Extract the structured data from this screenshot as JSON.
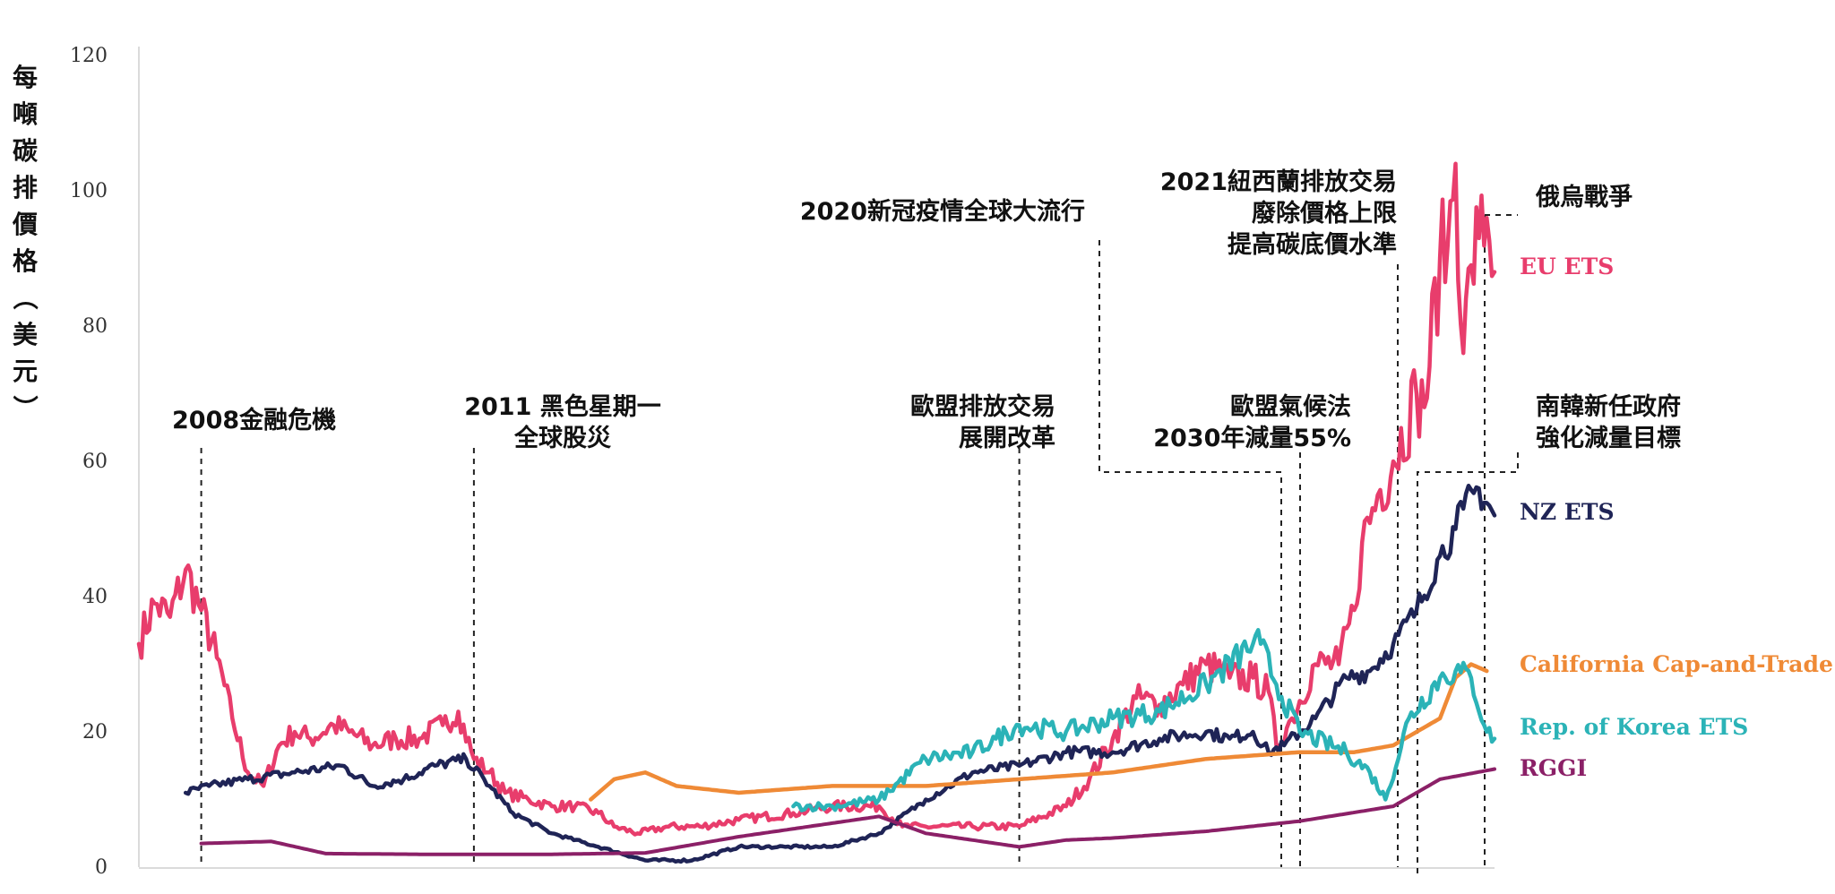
{
  "chart_data": {
    "type": "line",
    "ylabel": "每噸碳排價格（美元）",
    "ylim": [
      0,
      120
    ],
    "yticks": [
      0,
      20,
      40,
      60,
      80,
      100,
      120
    ],
    "xlim": [
      "2008-01",
      "2022-07"
    ],
    "grid": false,
    "legend": "right-inline",
    "series": [
      {
        "name": "EU ETS",
        "color": "#E83D6C",
        "points": [
          [
            "2008-01",
            33
          ],
          [
            "2008-03",
            39
          ],
          [
            "2008-05",
            37
          ],
          [
            "2008-07",
            44
          ],
          [
            "2008-09",
            38
          ],
          [
            "2008-11",
            31
          ],
          [
            "2009-01",
            22
          ],
          [
            "2009-03",
            14
          ],
          [
            "2009-05",
            12
          ],
          [
            "2009-07",
            18
          ],
          [
            "2009-09",
            20
          ],
          [
            "2009-11",
            19
          ],
          [
            "2010-02",
            21
          ],
          [
            "2010-04",
            20
          ],
          [
            "2010-07",
            18
          ],
          [
            "2010-10",
            19
          ],
          [
            "2011-01",
            19
          ],
          [
            "2011-04",
            21
          ],
          [
            "2011-06",
            23
          ],
          [
            "2011-08",
            16
          ],
          [
            "2011-10",
            14
          ],
          [
            "2011-12",
            11
          ],
          [
            "2012-03",
            10
          ],
          [
            "2012-06",
            9
          ],
          [
            "2012-09",
            9
          ],
          [
            "2012-12",
            8
          ],
          [
            "2013-02",
            6
          ],
          [
            "2013-05",
            5
          ],
          [
            "2013-09",
            6
          ],
          [
            "2014-01",
            6
          ],
          [
            "2014-06",
            7
          ],
          [
            "2015-01",
            8
          ],
          [
            "2015-06",
            9
          ],
          [
            "2015-12",
            9
          ],
          [
            "2016-03",
            6
          ],
          [
            "2016-06",
            6
          ],
          [
            "2016-12",
            6
          ],
          [
            "2017-06",
            6
          ],
          [
            "2017-12",
            9
          ],
          [
            "2018-03",
            13
          ],
          [
            "2018-06",
            19
          ],
          [
            "2018-09",
            25
          ],
          [
            "2018-12",
            24
          ],
          [
            "2019-03",
            27
          ],
          [
            "2019-06",
            30
          ],
          [
            "2019-09",
            28
          ],
          [
            "2019-12",
            28
          ],
          [
            "2020-02",
            26
          ],
          [
            "2020-03",
            18
          ],
          [
            "2020-05",
            22
          ],
          [
            "2020-08",
            30
          ],
          [
            "2020-11",
            30
          ],
          [
            "2021-01",
            38
          ],
          [
            "2021-02",
            48
          ],
          [
            "2021-04",
            55
          ],
          [
            "2021-06",
            60
          ],
          [
            "2021-09",
            70
          ],
          [
            "2021-10",
            68
          ],
          [
            "2021-12",
            90
          ],
          [
            "2022-01",
            92
          ],
          [
            "2022-02",
            104
          ],
          [
            "2022-03",
            76
          ],
          [
            "2022-04",
            89
          ],
          [
            "2022-05",
            93
          ],
          [
            "2022-06",
            96
          ],
          [
            "2022-07",
            88
          ]
        ]
      },
      {
        "name": "NZ ETS",
        "color": "#1F2456",
        "points": [
          [
            "2008-07",
            11
          ],
          [
            "2008-10",
            12
          ],
          [
            "2009-03",
            13
          ],
          [
            "2009-09",
            14
          ],
          [
            "2010-03",
            15
          ],
          [
            "2010-07",
            12
          ],
          [
            "2010-11",
            13
          ],
          [
            "2011-03",
            15
          ],
          [
            "2011-07",
            16
          ],
          [
            "2011-10",
            12
          ],
          [
            "2012-01",
            8
          ],
          [
            "2012-06",
            5
          ],
          [
            "2012-12",
            3
          ],
          [
            "2013-06",
            1
          ],
          [
            "2013-12",
            1
          ],
          [
            "2014-06",
            3
          ],
          [
            "2014-12",
            3
          ],
          [
            "2015-06",
            3
          ],
          [
            "2015-12",
            5
          ],
          [
            "2016-06",
            10
          ],
          [
            "2016-12",
            14
          ],
          [
            "2017-06",
            15
          ],
          [
            "2017-12",
            17
          ],
          [
            "2018-06",
            17
          ],
          [
            "2018-12",
            19
          ],
          [
            "2019-06",
            20
          ],
          [
            "2019-09",
            19
          ],
          [
            "2019-12",
            20
          ],
          [
            "2020-02",
            17
          ],
          [
            "2020-04",
            18
          ],
          [
            "2020-08",
            22
          ],
          [
            "2020-12",
            28
          ],
          [
            "2021-03",
            29
          ],
          [
            "2021-06",
            33
          ],
          [
            "2021-09",
            38
          ],
          [
            "2021-12",
            46
          ],
          [
            "2022-02",
            50
          ],
          [
            "2022-03",
            53
          ],
          [
            "2022-05",
            56
          ],
          [
            "2022-07",
            52
          ]
        ]
      },
      {
        "name": "California Cap-and-Trade",
        "color": "#EF8A36",
        "points": [
          [
            "2012-11",
            10
          ],
          [
            "2013-02",
            13
          ],
          [
            "2013-06",
            14
          ],
          [
            "2013-10",
            12
          ],
          [
            "2014-06",
            11
          ],
          [
            "2015-06",
            12
          ],
          [
            "2016-06",
            12
          ],
          [
            "2017-06",
            13
          ],
          [
            "2018-06",
            14
          ],
          [
            "2019-06",
            16
          ],
          [
            "2020-06",
            17
          ],
          [
            "2021-01",
            17
          ],
          [
            "2021-06",
            18
          ],
          [
            "2021-12",
            22
          ],
          [
            "2022-02",
            28
          ],
          [
            "2022-04",
            30
          ],
          [
            "2022-06",
            29
          ]
        ]
      },
      {
        "name": "Rep. of Korea ETS",
        "color": "#2BB3B7",
        "points": [
          [
            "2015-01",
            9
          ],
          [
            "2015-06",
            9
          ],
          [
            "2015-12",
            10
          ],
          [
            "2016-06",
            16
          ],
          [
            "2016-12",
            17
          ],
          [
            "2017-03",
            19
          ],
          [
            "2017-06",
            21
          ],
          [
            "2017-12",
            20
          ],
          [
            "2018-06",
            22
          ],
          [
            "2018-12",
            23
          ],
          [
            "2019-06",
            27
          ],
          [
            "2019-12",
            33
          ],
          [
            "2020-01",
            33
          ],
          [
            "2020-03",
            27
          ],
          [
            "2020-06",
            20
          ],
          [
            "2020-12",
            17
          ],
          [
            "2021-03",
            14
          ],
          [
            "2021-05",
            10
          ],
          [
            "2021-08",
            22
          ],
          [
            "2021-12",
            28
          ],
          [
            "2022-02",
            29
          ],
          [
            "2022-04",
            28
          ],
          [
            "2022-06",
            20
          ],
          [
            "2022-07",
            19
          ]
        ]
      },
      {
        "name": "RGGI",
        "color": "#8B2067",
        "points": [
          [
            "2008-09",
            3.5
          ],
          [
            "2009-06",
            3.8
          ],
          [
            "2010-01",
            2
          ],
          [
            "2011-01",
            1.9
          ],
          [
            "2012-06",
            1.9
          ],
          [
            "2013-06",
            2.1
          ],
          [
            "2014-06",
            4.5
          ],
          [
            "2015-06",
            6.5
          ],
          [
            "2015-12",
            7.5
          ],
          [
            "2016-06",
            5
          ],
          [
            "2016-12",
            4
          ],
          [
            "2017-06",
            3
          ],
          [
            "2017-12",
            4
          ],
          [
            "2018-06",
            4.3
          ],
          [
            "2019-06",
            5.3
          ],
          [
            "2020-06",
            6.8
          ],
          [
            "2021-06",
            9
          ],
          [
            "2021-12",
            13
          ],
          [
            "2022-07",
            14.5
          ]
        ]
      }
    ],
    "annotations": [
      {
        "lines": [
          "2008金融危機"
        ],
        "date": "2008-09"
      },
      {
        "lines": [
          "2011 黑色星期一",
          "全球股災"
        ],
        "date": "2011-08"
      },
      {
        "lines": [
          "歐盟排放交易",
          "展開改革"
        ],
        "date": "2017-06"
      },
      {
        "lines": [
          "2020新冠疫情全球大流行"
        ],
        "date": "2020-03"
      },
      {
        "lines": [
          "歐盟氣候法",
          "2030年減量55%"
        ],
        "date": "2020-06"
      },
      {
        "lines": [
          "2021紐西蘭排放交易",
          "廢除價格上限",
          "提高碳底價水準"
        ],
        "date": "2021-03"
      },
      {
        "lines": [
          "南韓新任政府",
          "強化減量目標"
        ],
        "date": "2022-05"
      },
      {
        "lines": [
          "俄烏戰爭"
        ],
        "date": "2022-02"
      }
    ]
  }
}
